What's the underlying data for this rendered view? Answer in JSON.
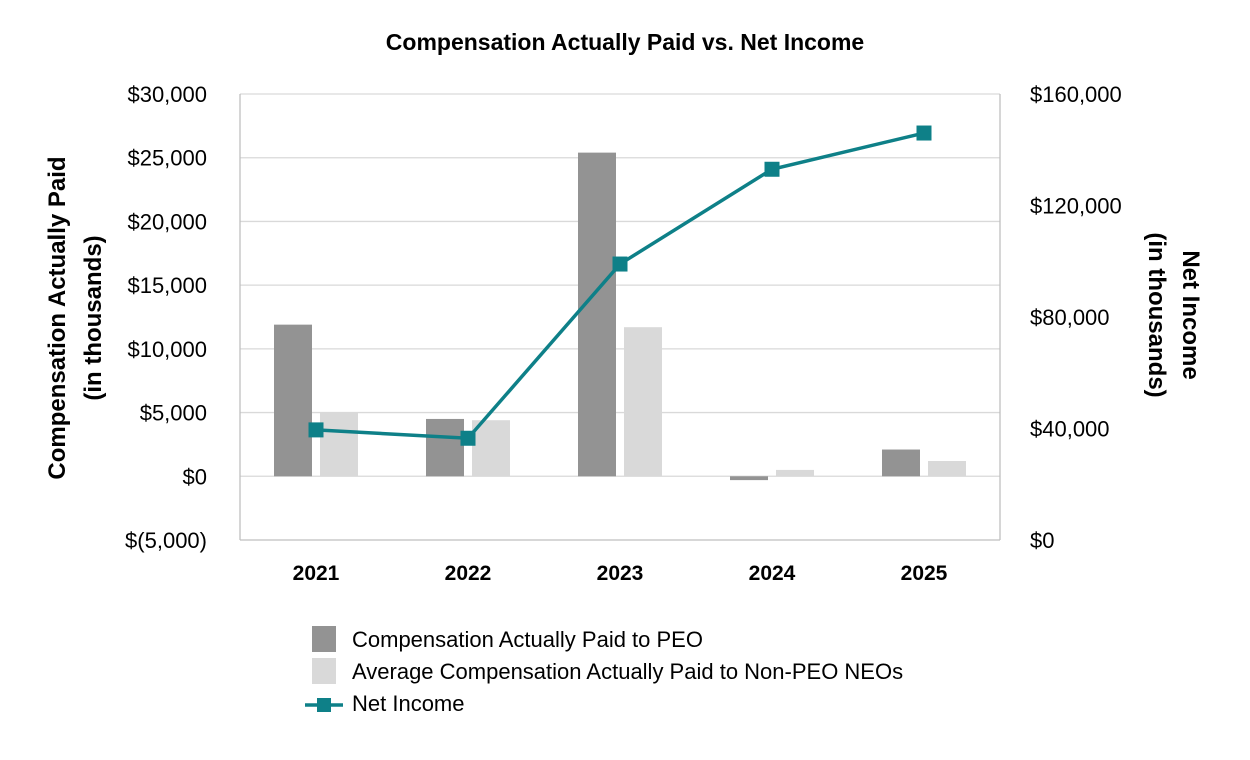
{
  "chart_data": {
    "type": "bar",
    "title": "Compensation Actually Paid vs. Net Income",
    "categories": [
      "2021",
      "2022",
      "2023",
      "2024",
      "2025"
    ],
    "ylabel_left": [
      "Compensation Actually Paid",
      "(in thousands)"
    ],
    "ylabel_right": [
      "Net Income",
      "(in thousands)"
    ],
    "y_left": {
      "lim": [
        -5000,
        30000
      ],
      "ticks": [
        30000,
        25000,
        20000,
        15000,
        10000,
        5000,
        0,
        -5000
      ],
      "tick_labels": [
        "$30,000",
        "$25,000",
        "$20,000",
        "$15,000",
        "$10,000",
        "$5,000",
        "$0",
        "$(5,000)"
      ]
    },
    "y_right": {
      "lim": [
        0,
        160000
      ],
      "ticks": [
        160000,
        120000,
        80000,
        40000,
        0
      ],
      "tick_labels": [
        "$160,000",
        "$120,000",
        "$80,000",
        "$40,000",
        "$0"
      ]
    },
    "series": [
      {
        "name": "Compensation Actually Paid to PEO",
        "type": "bar",
        "axis": "left",
        "color": "#939393",
        "values": [
          11900,
          4500,
          25400,
          -300,
          2100
        ]
      },
      {
        "name": "Average Compensation Actually Paid to Non-PEO NEOs",
        "type": "bar",
        "axis": "left",
        "color": "#d9d9d9",
        "values": [
          5000,
          4400,
          11700,
          500,
          1200
        ]
      },
      {
        "name": "Net Income",
        "type": "line",
        "axis": "right",
        "color": "#0e8088",
        "values": [
          39500,
          36500,
          99000,
          133000,
          146000
        ]
      }
    ],
    "grid": true,
    "legend_position": "bottom"
  }
}
